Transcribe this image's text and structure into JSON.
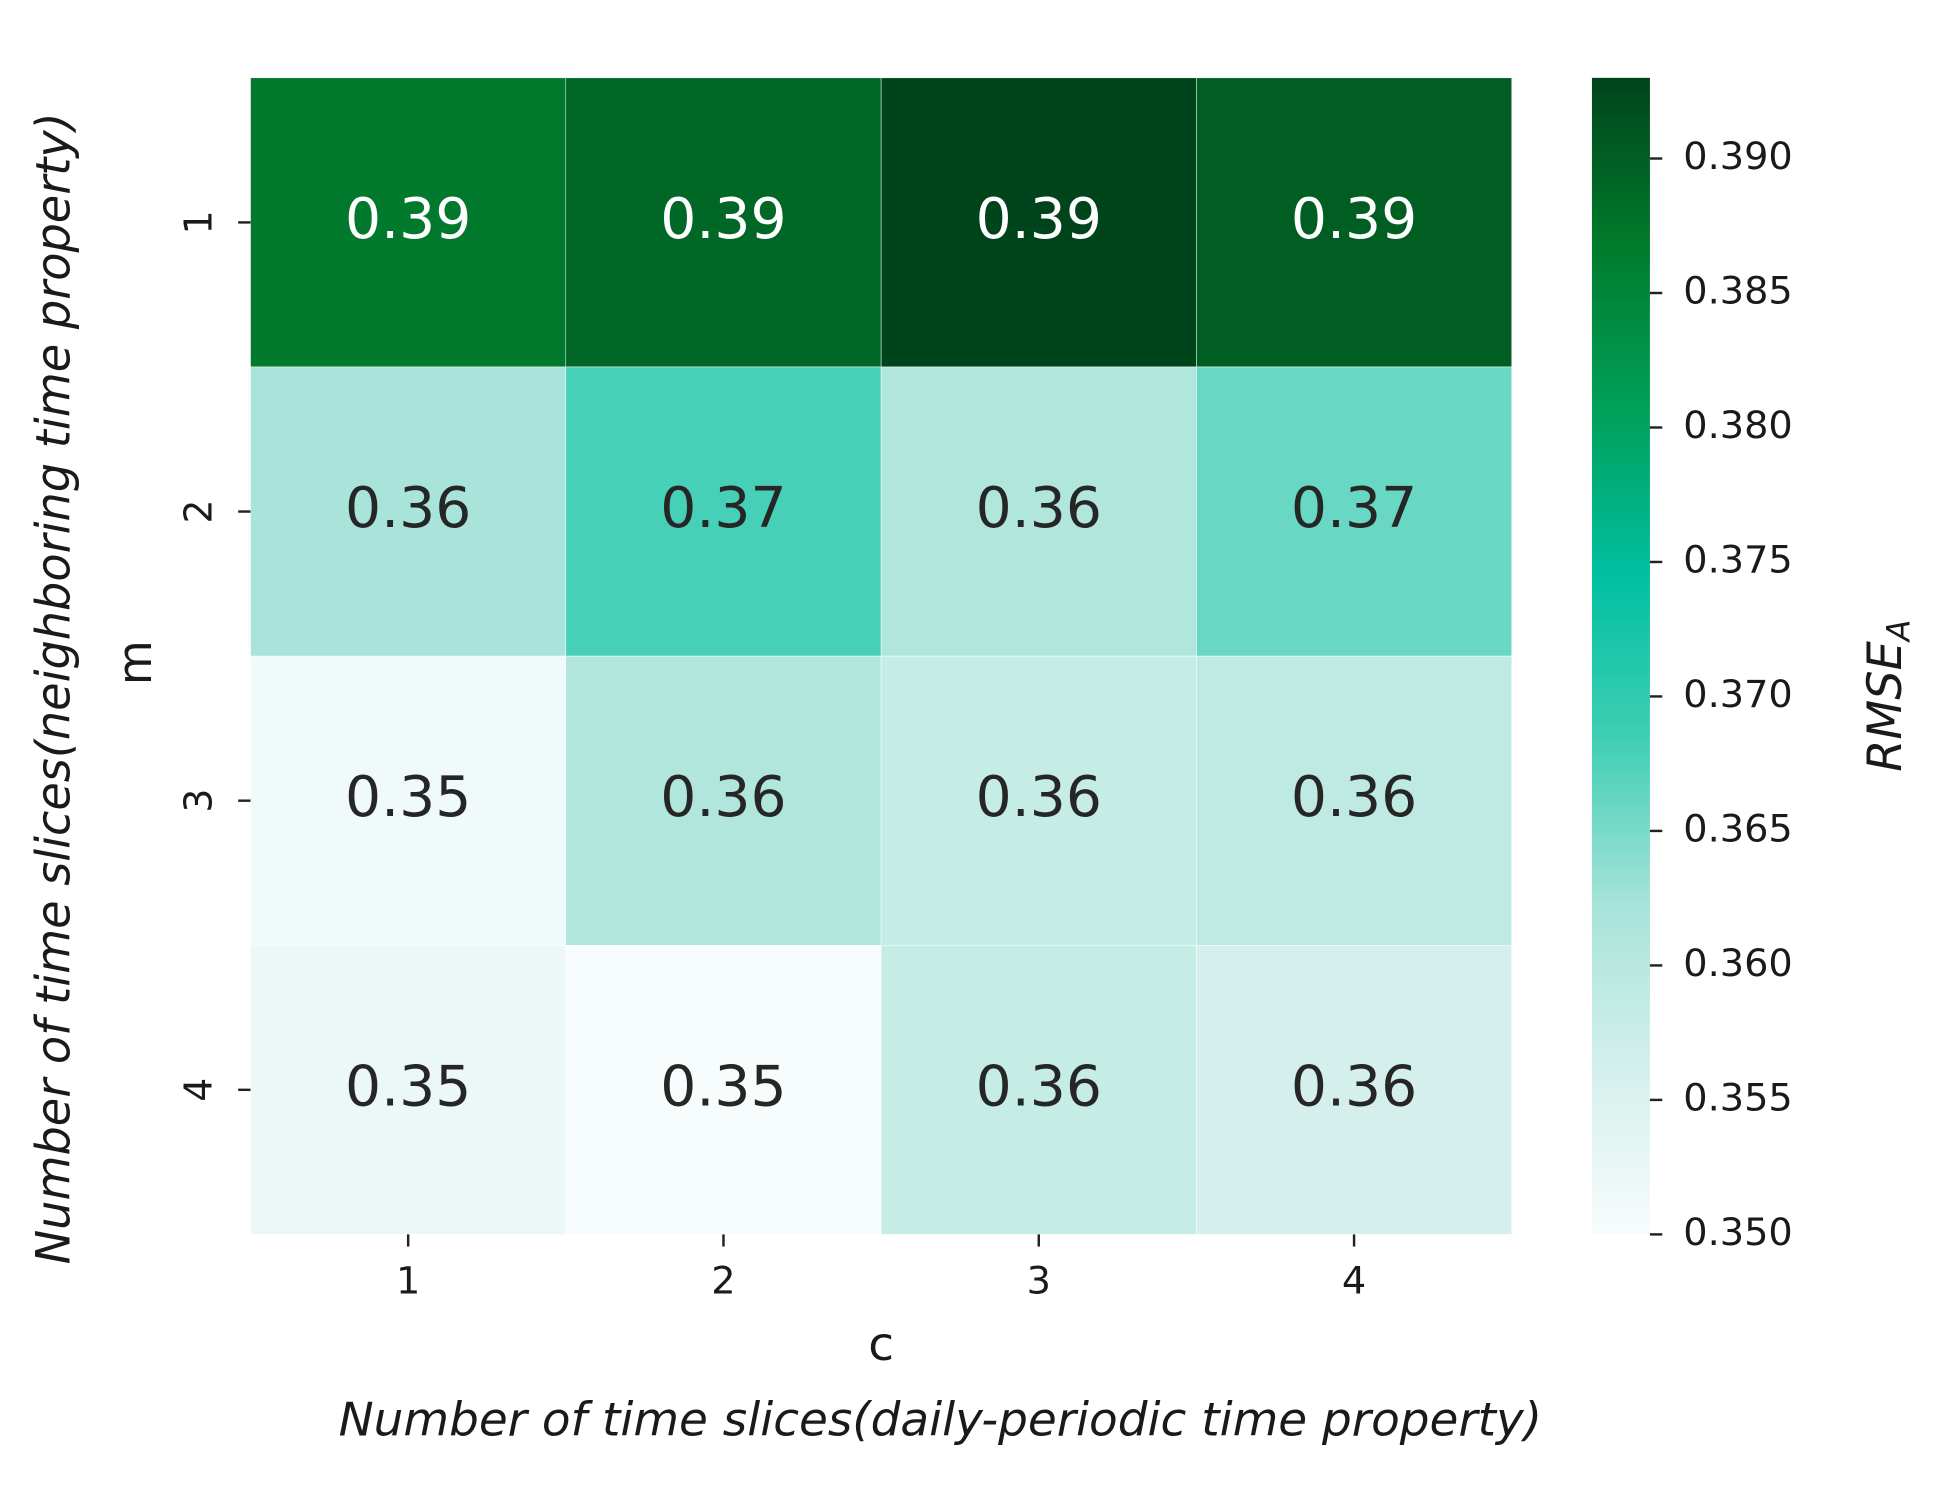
{
  "chart_data": {
    "type": "heatmap",
    "x_categories": [
      "1",
      "2",
      "3",
      "4"
    ],
    "y_categories": [
      "1",
      "2",
      "3",
      "4"
    ],
    "values": [
      [
        0.387,
        0.389,
        0.393,
        0.39
      ],
      [
        0.362,
        0.368,
        0.361,
        0.366
      ],
      [
        0.351,
        0.361,
        0.358,
        0.359
      ],
      [
        0.352,
        0.35,
        0.358,
        0.356
      ]
    ],
    "value_labels": [
      [
        "0.39",
        "0.39",
        "0.39",
        "0.39"
      ],
      [
        "0.36",
        "0.37",
        "0.36",
        "0.37"
      ],
      [
        "0.35",
        "0.36",
        "0.36",
        "0.36"
      ],
      [
        "0.35",
        "0.35",
        "0.36",
        "0.36"
      ]
    ],
    "x_label": "c",
    "x_title": "Number of time slices(daily-periodic time property)",
    "y_label": "m",
    "y_title": "Number of time slices(neighboring time property)",
    "colorbar_label": "RMSE",
    "colorbar_label_sub": "A",
    "zlim": [
      0.35,
      0.393
    ],
    "zticks": [
      {
        "value": 0.35,
        "label": "0.350"
      },
      {
        "value": 0.355,
        "label": "0.355"
      },
      {
        "value": 0.36,
        "label": "0.360"
      },
      {
        "value": 0.365,
        "label": "0.365"
      },
      {
        "value": 0.37,
        "label": "0.370"
      },
      {
        "value": 0.375,
        "label": "0.375"
      },
      {
        "value": 0.38,
        "label": "0.380"
      },
      {
        "value": 0.385,
        "label": "0.385"
      },
      {
        "value": 0.39,
        "label": "0.390"
      }
    ],
    "colors": [
      "#f7fcfd",
      "#d4f0ec",
      "#a6e3d8",
      "#3fcfb5",
      "#00bfa0",
      "#00a058",
      "#007a2c",
      "#00441b"
    ]
  }
}
